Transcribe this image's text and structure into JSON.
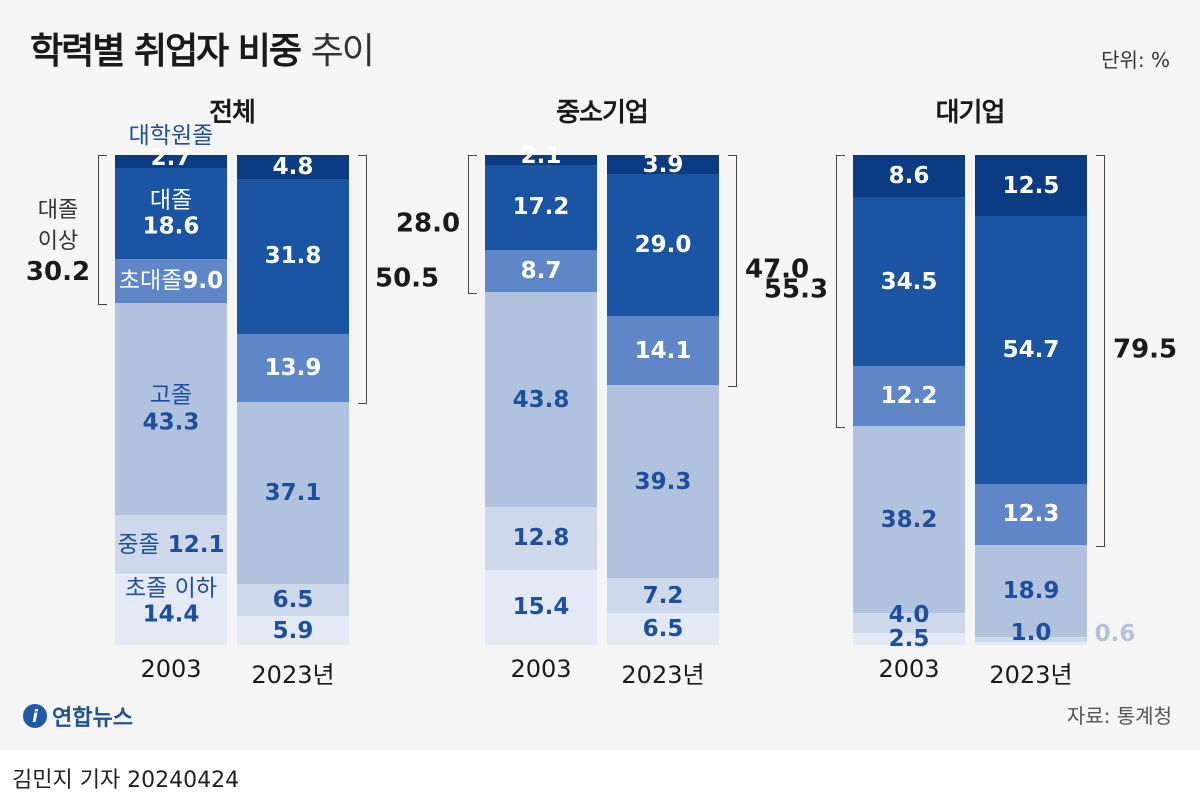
{
  "title_bold": "학력별 취업자 비중",
  "title_light": "추이",
  "unit": "단위: %",
  "source": "자료: 통계청",
  "logo_text": "연합뉴스",
  "byline": "김민지 기자  20240424",
  "colors": {
    "대학원졸": "#0b3c83",
    "대졸": "#1a54a2",
    "초대졸": "#5f87c7",
    "고졸": "#b1c2df",
    "중졸": "#cdd8eb",
    "초졸 이하": "#e3e9f5",
    "dark_text": "#ffffff",
    "light_text": "#1f4f9c"
  },
  "chart_data": {
    "type": "bar",
    "stacked": true,
    "unit": "%",
    "categories_order": [
      "대학원졸",
      "대졸",
      "초대졸",
      "고졸",
      "중졸",
      "초졸 이하"
    ],
    "panels": [
      {
        "title": "전체",
        "bars": [
          {
            "year": "2003",
            "values": [
              2.7,
              18.6,
              9.0,
              43.3,
              12.1,
              14.4
            ],
            "bracket": {
              "side": "left",
              "value": "30.2",
              "label": "대졸\n이상"
            }
          },
          {
            "year": "2023년",
            "values": [
              4.8,
              31.8,
              13.9,
              37.1,
              6.5,
              5.9
            ],
            "bracket": {
              "side": "right",
              "value": "50.5"
            }
          }
        ]
      },
      {
        "title": "중소기업",
        "bars": [
          {
            "year": "2003",
            "values": [
              2.1,
              17.2,
              8.7,
              43.8,
              12.8,
              15.4
            ],
            "bracket": {
              "side": "left",
              "value": "28.0"
            }
          },
          {
            "year": "2023년",
            "values": [
              3.9,
              29.0,
              14.1,
              39.3,
              7.2,
              6.5
            ],
            "bracket": {
              "side": "right",
              "value": "47.0"
            }
          }
        ]
      },
      {
        "title": "대기업",
        "bars": [
          {
            "year": "2003",
            "values": [
              8.6,
              34.5,
              12.2,
              38.2,
              4.0,
              2.5
            ],
            "bracket": {
              "side": "left",
              "value": "55.3"
            }
          },
          {
            "year": "2023년",
            "values": [
              12.5,
              54.7,
              12.3,
              18.9,
              1.0,
              0.6
            ],
            "bracket": {
              "side": "right",
              "value": "79.5"
            }
          }
        ]
      }
    ]
  }
}
